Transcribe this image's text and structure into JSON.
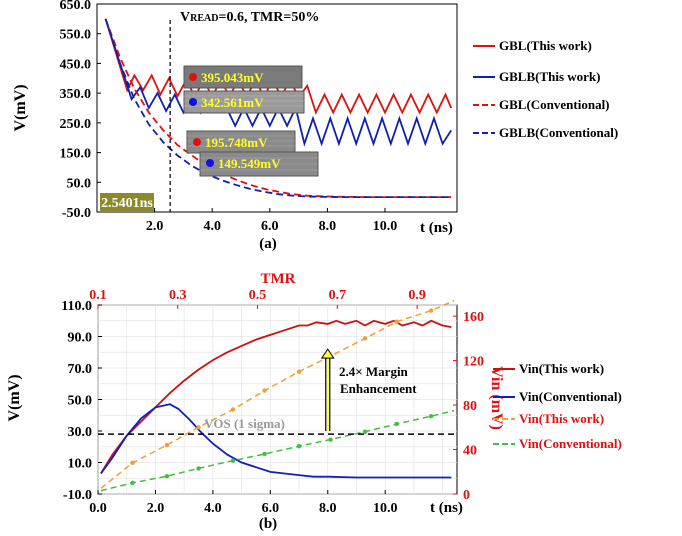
{
  "chart_data": [
    {
      "type": "line",
      "panel_label": "(a)",
      "annotation": "VREAD=0.6, TMR=50%",
      "annotation_parts": {
        "main": "V",
        "small": "READ",
        "rest": "=0.6, TMR=50%"
      },
      "xlabel": "t (ns)",
      "ylabel": "V(mV)",
      "xlim": [
        0,
        12.5
      ],
      "ylim": [
        -50,
        650
      ],
      "x_ticks": [
        {
          "v": 2,
          "label": "2.0"
        },
        {
          "v": 4,
          "label": "4.0"
        },
        {
          "v": 6,
          "label": "6.0"
        },
        {
          "v": 8,
          "label": "8.0"
        },
        {
          "v": 10,
          "label": "10.0"
        }
      ],
      "y_ticks": [
        {
          "v": -50,
          "label": "-50.0"
        },
        {
          "v": 50,
          "label": "50.0"
        },
        {
          "v": 150,
          "label": "150.0"
        },
        {
          "v": 250,
          "label": "250.0"
        },
        {
          "v": 350,
          "label": "350.0"
        },
        {
          "v": 450,
          "label": "450.0"
        },
        {
          "v": 550,
          "label": "550.0"
        },
        {
          "v": 650,
          "label": "650.0"
        }
      ],
      "cursor": {
        "x": 2.5401,
        "label": "2.5401ns"
      },
      "markers": [
        {
          "label": "395.043mV",
          "color": "#e01010"
        },
        {
          "label": "342.561mV",
          "color": "#1010e0"
        },
        {
          "label": "195.748mV",
          "color": "#e01010"
        },
        {
          "label": "149.549mV",
          "color": "#1010e0"
        }
      ],
      "series": [
        {
          "name": "GBL(This work)",
          "color": "#e01010",
          "dash": false,
          "x": [
            0.3,
            1.05,
            1.3,
            1.6,
            1.9,
            2.2,
            2.5,
            2.8,
            3.1,
            3.4,
            3.7,
            4.0,
            4.3,
            4.6,
            4.9,
            5.2,
            5.5,
            5.8,
            6.1,
            6.4,
            6.7,
            7.0,
            7.3,
            7.6,
            7.9,
            8.2,
            8.5,
            8.8,
            9.1,
            9.4,
            9.7,
            10.0,
            10.3,
            10.6,
            10.9,
            11.2,
            11.5,
            11.8,
            12.1,
            12.3
          ],
          "y": [
            600,
            360,
            410,
            360,
            410,
            345,
            400,
            340,
            395,
            338,
            395,
            338,
            395,
            338,
            395,
            338,
            395,
            338,
            395,
            338,
            395,
            335,
            375,
            285,
            345,
            285,
            345,
            285,
            345,
            285,
            345,
            285,
            345,
            285,
            345,
            285,
            345,
            285,
            345,
            300
          ]
        },
        {
          "name": "GBLB(This work)",
          "color": "#1020b0",
          "dash": false,
          "x": [
            0.3,
            1.2,
            1.5,
            1.8,
            2.1,
            2.4,
            2.7,
            3.0,
            3.3,
            3.6,
            3.9,
            4.2,
            4.5,
            4.8,
            5.1,
            5.4,
            5.7,
            6.0,
            6.3,
            6.6,
            6.9,
            7.2,
            7.5,
            7.8,
            8.1,
            8.4,
            8.7,
            9.0,
            9.3,
            9.6,
            9.9,
            10.2,
            10.5,
            10.8,
            11.1,
            11.4,
            11.7,
            12.0,
            12.3
          ],
          "y": [
            600,
            330,
            370,
            300,
            350,
            290,
            345,
            285,
            345,
            285,
            345,
            290,
            300,
            240,
            300,
            240,
            300,
            240,
            300,
            240,
            300,
            180,
            265,
            180,
            265,
            180,
            265,
            180,
            265,
            180,
            265,
            180,
            265,
            180,
            265,
            180,
            265,
            180,
            225
          ]
        },
        {
          "name": "GBL(Conventional)",
          "color": "#e01010",
          "dash": true,
          "x": [
            0.3,
            0.8,
            1.3,
            1.8,
            2.3,
            2.8,
            3.3,
            3.8,
            4.3,
            4.8,
            5.3,
            5.8,
            6.3,
            6.8,
            7.3,
            7.8,
            8.5,
            9.5,
            10.5,
            11.5,
            12.3
          ],
          "y": [
            600,
            470,
            365,
            285,
            225,
            175,
            140,
            105,
            80,
            60,
            42,
            28,
            18,
            10,
            5,
            3,
            1,
            0,
            0,
            0,
            0
          ]
        },
        {
          "name": "GBLB(Conventional)",
          "color": "#1020b0",
          "dash": true,
          "x": [
            0.3,
            0.8,
            1.3,
            1.8,
            2.3,
            2.8,
            3.3,
            3.8,
            4.3,
            4.8,
            5.3,
            5.8,
            6.3,
            6.8,
            7.3,
            7.8,
            8.5,
            9.5,
            10.5,
            11.5,
            12.3
          ],
          "y": [
            600,
            450,
            330,
            245,
            185,
            140,
            105,
            78,
            58,
            42,
            28,
            18,
            10,
            5,
            2,
            1,
            0,
            0,
            0,
            0,
            0
          ]
        }
      ]
    },
    {
      "type": "line",
      "panel_label": "(b)",
      "title_top_axis": "TMR",
      "xlabel": "t (ns)",
      "ylabel": "V(mV)",
      "y2label": "Vin (mV)",
      "xlim": [
        0,
        12.5
      ],
      "ylim": [
        -10,
        110
      ],
      "y2lim": [
        0,
        170
      ],
      "x2lim": [
        0.1,
        1.0
      ],
      "x_ticks": [
        {
          "v": 0,
          "label": "0.0"
        },
        {
          "v": 2,
          "label": "2.0"
        },
        {
          "v": 4,
          "label": "4.0"
        },
        {
          "v": 6,
          "label": "6.0"
        },
        {
          "v": 8,
          "label": "8.0"
        },
        {
          "v": 10,
          "label": "10.0"
        }
      ],
      "y_ticks": [
        {
          "v": -10,
          "label": "-10.0"
        },
        {
          "v": 10,
          "label": "10.0"
        },
        {
          "v": 30,
          "label": "30.0"
        },
        {
          "v": 50,
          "label": "50.0"
        },
        {
          "v": 70,
          "label": "70.0"
        },
        {
          "v": 90,
          "label": "90.0"
        },
        {
          "v": 110,
          "label": "110.0"
        }
      ],
      "y2_ticks": [
        {
          "v": 0,
          "label": "0"
        },
        {
          "v": 40,
          "label": "40"
        },
        {
          "v": 80,
          "label": "80"
        },
        {
          "v": 120,
          "label": "120"
        },
        {
          "v": 160,
          "label": "160"
        }
      ],
      "x2_ticks": [
        {
          "v": 0.1,
          "label": "0.1"
        },
        {
          "v": 0.3,
          "label": "0.3"
        },
        {
          "v": 0.5,
          "label": "0.5"
        },
        {
          "v": 0.7,
          "label": "0.7"
        },
        {
          "v": 0.9,
          "label": "0.9"
        }
      ],
      "hline": {
        "y": 28,
        "label": "VOS (1 sigma)"
      },
      "annotation": {
        "arrow_x": 8.0,
        "y_from": 30,
        "y_to": 82,
        "label1": "2.4× Margin",
        "label2": "Enhancement"
      },
      "series": [
        {
          "name": "Vin(This work)",
          "color": "#cc1010",
          "dash": false,
          "axis": "left",
          "x": [
            0.1,
            0.5,
            1.0,
            1.5,
            2.0,
            2.5,
            3.0,
            3.5,
            4.0,
            4.5,
            5.0,
            5.5,
            6.0,
            6.5,
            7.0,
            7.3,
            7.6,
            8.0,
            8.3,
            8.6,
            9.0,
            9.3,
            9.6,
            10.0,
            10.3,
            10.6,
            11.0,
            11.3,
            11.6,
            12.0,
            12.3
          ],
          "y": [
            3,
            15,
            27,
            36,
            45,
            54,
            62,
            69,
            75,
            80,
            84,
            88,
            91,
            94,
            97,
            97,
            99,
            98,
            100,
            98,
            100,
            97,
            100,
            98,
            100,
            97,
            99,
            97,
            100,
            97,
            96
          ]
        },
        {
          "name": "Vin(Conventional)",
          "color": "#1020c0",
          "dash": false,
          "axis": "left",
          "x": [
            0.1,
            0.5,
            1.0,
            1.5,
            2.0,
            2.5,
            2.8,
            3.2,
            3.6,
            4.0,
            4.5,
            5.0,
            5.5,
            6.0,
            6.5,
            7.0,
            7.5,
            8.0,
            9.0,
            10.0,
            11.0,
            12.3
          ],
          "y": [
            3,
            13,
            27,
            38,
            45,
            47,
            44,
            37,
            29,
            22,
            15,
            10,
            7,
            4,
            3,
            2,
            1,
            1,
            0.5,
            0.5,
            0.5,
            0.5
          ]
        },
        {
          "name": "Vin(This work)",
          "color": "#f0a030",
          "dash": true,
          "axis": "right",
          "x": [
            0.1,
            1.2,
            2.4,
            3.5,
            4.7,
            5.8,
            7.0,
            8.1,
            9.3,
            10.4,
            11.6,
            12.4
          ],
          "y": [
            5,
            28,
            44,
            60,
            76,
            93,
            110,
            124,
            140,
            155,
            165,
            174
          ]
        },
        {
          "name": "Vin(Conventional)",
          "color": "#40c040",
          "dash": true,
          "axis": "right",
          "x": [
            0.1,
            1.2,
            2.4,
            3.5,
            4.7,
            5.8,
            7.0,
            8.1,
            9.3,
            10.4,
            11.6,
            12.4
          ],
          "y": [
            3,
            10,
            16,
            23,
            30,
            36,
            43,
            49,
            56,
            63,
            70,
            75
          ]
        }
      ]
    }
  ]
}
